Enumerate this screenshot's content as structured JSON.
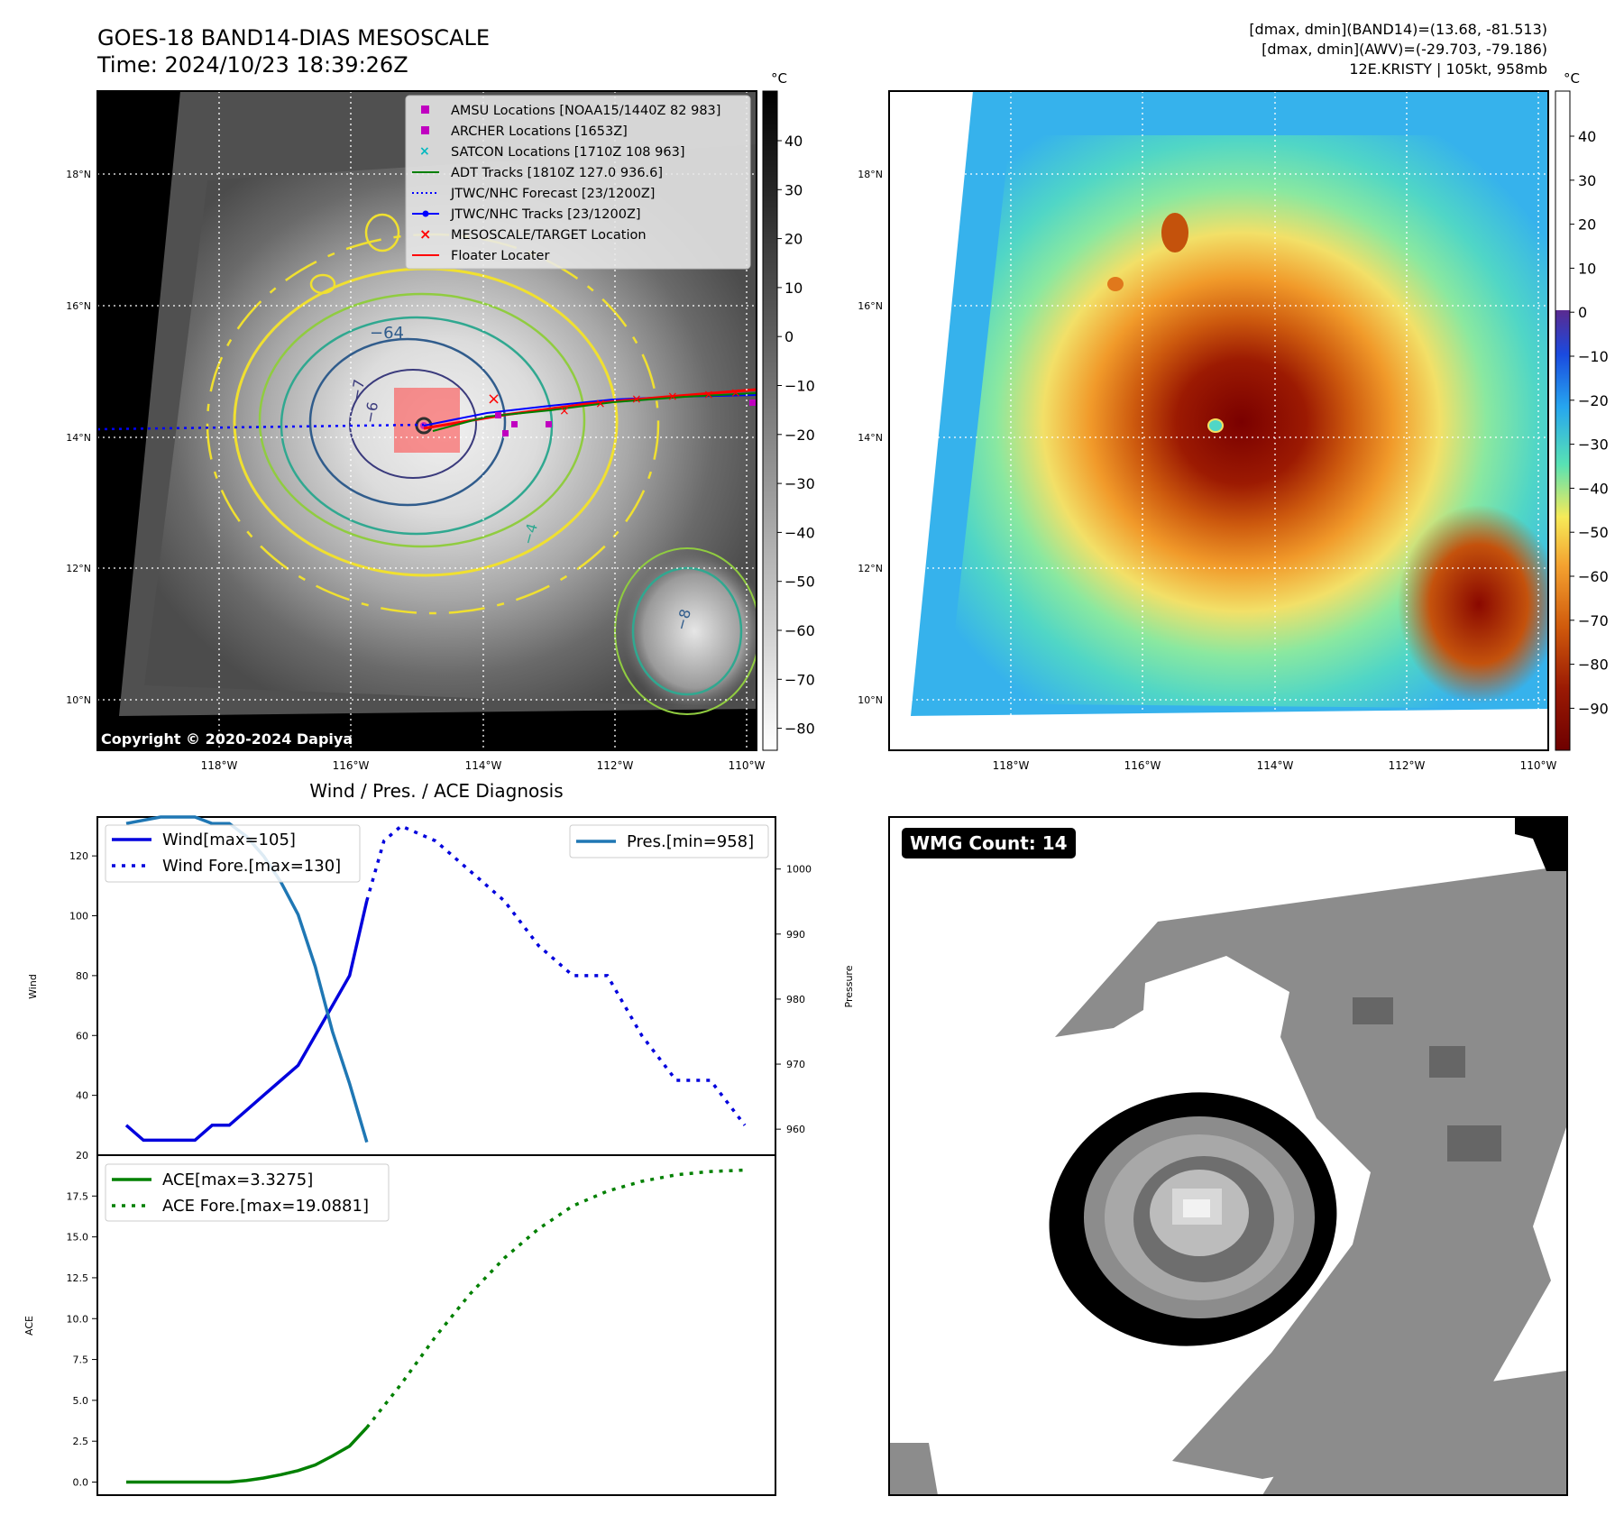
{
  "header": {
    "title_line1": "GOES-18 BAND14-DIAS MESOSCALE",
    "title_line2": "Time: 2024/10/23 18:39:26Z",
    "stats_line1": "[dmax, dmin](BAND14)=(13.68, -81.513)",
    "stats_line2": "[dmax, dmin](AWV)=(-29.703, -79.186)",
    "stats_line3": "12E.KRISTY | 105kt, 958mb"
  },
  "map": {
    "lon_labels": [
      "118°W",
      "116°W",
      "114°W",
      "112°W",
      "110°W"
    ],
    "lat_labels": [
      "18°N",
      "16°N",
      "14°N",
      "12°N",
      "10°N"
    ],
    "copyright": "Copyright © 2020-2024 Dapiya",
    "contour_labels": [
      "−64",
      "−7",
      "−6",
      "−8",
      "−4"
    ],
    "legend": [
      {
        "label": "AMSU Locations [NOAA15/1440Z 82 983]",
        "symbol": "square",
        "color": "#c000c0"
      },
      {
        "label": "ARCHER Locations [1653Z]",
        "symbol": "square",
        "color": "#c000c0"
      },
      {
        "label": "SATCON Locations [1710Z 108 963]",
        "symbol": "x",
        "color": "#00b8c0"
      },
      {
        "label": "ADT Tracks [1810Z 127.0 936.6]",
        "symbol": "line",
        "color": "#008000"
      },
      {
        "label": "JTWC/NHC Forecast [23/1200Z]",
        "symbol": "dotted",
        "color": "#0000ff"
      },
      {
        "label": "JTWC/NHC Tracks [23/1200Z]",
        "symbol": "line-dot",
        "color": "#0000ff"
      },
      {
        "label": "MESOSCALE/TARGET Location",
        "symbol": "x",
        "color": "#ff0000"
      },
      {
        "label": "Floater Locater",
        "symbol": "line",
        "color": "#ff0000"
      }
    ]
  },
  "colorbar_gray": {
    "unit": "°C",
    "ticks": [
      "40",
      "30",
      "20",
      "10",
      "0",
      "−10",
      "−20",
      "−30",
      "−40",
      "−50",
      "−60",
      "−70",
      "−80"
    ]
  },
  "colorbar_color": {
    "unit": "°C",
    "ticks": [
      "40",
      "30",
      "20",
      "10",
      "0",
      "−10",
      "−20",
      "−30",
      "−40",
      "−50",
      "−60",
      "−70",
      "−80",
      "−90"
    ]
  },
  "wmg": {
    "badge": "WMG Count: 14"
  },
  "chart_data": [
    {
      "type": "line",
      "title": "Wind / Pres. / ACE Diagnosis",
      "ylabel": "Wind",
      "ylabel_right": "Pressure",
      "ylim": [
        20,
        133
      ],
      "ylim_right": [
        956,
        1008
      ],
      "yticks": [
        40,
        60,
        80,
        100,
        120
      ],
      "yticks_right": [
        960,
        970,
        980,
        990,
        1000
      ],
      "y_axis_bottom_label": "20",
      "series": [
        {
          "name": "Wind[max=105]",
          "axis": "left",
          "style": "solid",
          "color": "#0000dd",
          "x": [
            0,
            1,
            2,
            3,
            4,
            5,
            6,
            7,
            8,
            9,
            10,
            11,
            12,
            13,
            14
          ],
          "values": [
            30,
            25,
            25,
            25,
            25,
            30,
            30,
            35,
            40,
            45,
            50,
            60,
            70,
            80,
            105
          ]
        },
        {
          "name": "Wind Fore.[max=130]",
          "axis": "left",
          "style": "dotted",
          "color": "#0000dd",
          "x": [
            14,
            15,
            16,
            18,
            20,
            22,
            24,
            26,
            28,
            30,
            32,
            34,
            36
          ],
          "values": [
            105,
            125,
            130,
            125,
            115,
            105,
            90,
            80,
            80,
            60,
            45,
            45,
            30
          ]
        },
        {
          "name": "Pres.[min=958]",
          "axis": "right",
          "style": "solid",
          "color": "#1f77b4",
          "x": [
            0,
            2,
            3,
            4,
            5,
            6,
            7,
            8,
            9,
            10,
            11,
            12,
            13,
            14
          ],
          "values": [
            1007,
            1008,
            1008,
            1008,
            1007,
            1007,
            1005,
            1002,
            998,
            993,
            985,
            975,
            967,
            958
          ]
        }
      ]
    },
    {
      "type": "line",
      "ylabel": "ACE",
      "ylim": [
        -0.8,
        20.0
      ],
      "yticks": [
        0.0,
        2.5,
        5.0,
        7.5,
        10.0,
        12.5,
        15.0,
        17.5,
        20.0
      ],
      "ytick_labels": [
        "0.0",
        "2.5",
        "5.0",
        "7.5",
        "10.0",
        "12.5",
        "15.0",
        "17.5",
        "20"
      ],
      "series": [
        {
          "name": "ACE[max=3.3275]",
          "style": "solid",
          "color": "#008000",
          "x": [
            0,
            2,
            4,
            6,
            7,
            8,
            9,
            10,
            11,
            12,
            13,
            14
          ],
          "values": [
            0,
            0,
            0,
            0,
            0.1,
            0.25,
            0.45,
            0.7,
            1.05,
            1.6,
            2.2,
            3.33
          ]
        },
        {
          "name": "ACE Fore.[max=19.0881]",
          "style": "dotted",
          "color": "#008000",
          "x": [
            14,
            16,
            18,
            20,
            22,
            24,
            26,
            28,
            30,
            32,
            34,
            36
          ],
          "values": [
            3.33,
            6.0,
            8.9,
            11.5,
            13.7,
            15.5,
            16.9,
            17.8,
            18.4,
            18.8,
            19.0,
            19.09
          ]
        }
      ]
    }
  ]
}
